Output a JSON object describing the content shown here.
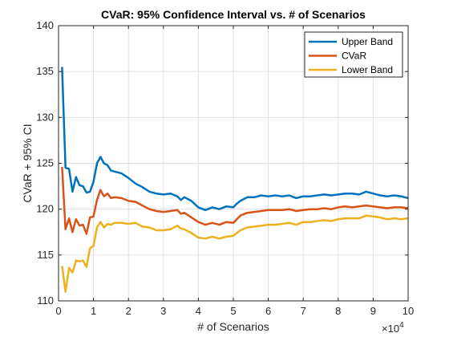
{
  "chart_data": {
    "type": "line",
    "title": "CVaR: 95% Confidence Interval vs. # of Scenarios",
    "xlabel": "# of Scenarios",
    "ylabel": "CVaR + 95% CI",
    "x_exponent_base": "×10",
    "x_exponent_power": "4",
    "xlim": [
      0,
      10
    ],
    "ylim": [
      110,
      140
    ],
    "xticks": [
      0,
      1,
      2,
      3,
      4,
      5,
      6,
      7,
      8,
      9,
      10
    ],
    "yticks": [
      110,
      115,
      120,
      125,
      130,
      135,
      140
    ],
    "grid": true,
    "legend_position": "top-right",
    "series": [
      {
        "name": "Upper Band",
        "color": "#0072BD",
        "points": [
          [
            0.1,
            135.5
          ],
          [
            0.2,
            124.5
          ],
          [
            0.3,
            124.4
          ],
          [
            0.4,
            121.9
          ],
          [
            0.5,
            123.5
          ],
          [
            0.6,
            122.6
          ],
          [
            0.7,
            122.5
          ],
          [
            0.8,
            121.8
          ],
          [
            0.9,
            121.9
          ],
          [
            1.0,
            123.0
          ],
          [
            1.1,
            125.0
          ],
          [
            1.2,
            125.7
          ],
          [
            1.3,
            125.0
          ],
          [
            1.4,
            124.8
          ],
          [
            1.5,
            124.2
          ],
          [
            1.6,
            124.1
          ],
          [
            1.8,
            123.9
          ],
          [
            2.0,
            123.4
          ],
          [
            2.2,
            122.8
          ],
          [
            2.4,
            122.4
          ],
          [
            2.6,
            121.9
          ],
          [
            2.8,
            121.7
          ],
          [
            3.0,
            121.6
          ],
          [
            3.2,
            121.7
          ],
          [
            3.4,
            121.4
          ],
          [
            3.5,
            121.0
          ],
          [
            3.6,
            121.3
          ],
          [
            3.8,
            120.9
          ],
          [
            4.0,
            120.2
          ],
          [
            4.2,
            119.9
          ],
          [
            4.4,
            120.2
          ],
          [
            4.6,
            120.0
          ],
          [
            4.8,
            120.3
          ],
          [
            5.0,
            120.2
          ],
          [
            5.1,
            120.6
          ],
          [
            5.2,
            120.9
          ],
          [
            5.4,
            121.3
          ],
          [
            5.6,
            121.3
          ],
          [
            5.8,
            121.5
          ],
          [
            6.0,
            121.4
          ],
          [
            6.2,
            121.5
          ],
          [
            6.4,
            121.4
          ],
          [
            6.6,
            121.5
          ],
          [
            6.8,
            121.2
          ],
          [
            7.0,
            121.4
          ],
          [
            7.2,
            121.4
          ],
          [
            7.4,
            121.5
          ],
          [
            7.6,
            121.6
          ],
          [
            7.8,
            121.5
          ],
          [
            8.0,
            121.6
          ],
          [
            8.2,
            121.7
          ],
          [
            8.4,
            121.7
          ],
          [
            8.6,
            121.6
          ],
          [
            8.8,
            121.9
          ],
          [
            9.0,
            121.7
          ],
          [
            9.2,
            121.5
          ],
          [
            9.4,
            121.4
          ],
          [
            9.6,
            121.5
          ],
          [
            9.8,
            121.4
          ],
          [
            10.0,
            121.2
          ]
        ]
      },
      {
        "name": "CVaR",
        "color": "#D95319",
        "points": [
          [
            0.1,
            124.6
          ],
          [
            0.2,
            117.8
          ],
          [
            0.3,
            119.0
          ],
          [
            0.4,
            117.5
          ],
          [
            0.5,
            118.9
          ],
          [
            0.6,
            118.2
          ],
          [
            0.7,
            118.3
          ],
          [
            0.8,
            117.3
          ],
          [
            0.9,
            119.1
          ],
          [
            1.0,
            119.2
          ],
          [
            1.1,
            121.0
          ],
          [
            1.2,
            122.1
          ],
          [
            1.3,
            121.4
          ],
          [
            1.4,
            121.7
          ],
          [
            1.5,
            121.2
          ],
          [
            1.6,
            121.3
          ],
          [
            1.8,
            121.2
          ],
          [
            2.0,
            120.9
          ],
          [
            2.2,
            120.8
          ],
          [
            2.4,
            120.4
          ],
          [
            2.6,
            120.0
          ],
          [
            2.8,
            119.8
          ],
          [
            3.0,
            119.7
          ],
          [
            3.2,
            119.8
          ],
          [
            3.4,
            119.9
          ],
          [
            3.5,
            119.5
          ],
          [
            3.6,
            119.6
          ],
          [
            3.8,
            119.1
          ],
          [
            4.0,
            118.6
          ],
          [
            4.2,
            118.3
          ],
          [
            4.4,
            118.5
          ],
          [
            4.6,
            118.3
          ],
          [
            4.8,
            118.6
          ],
          [
            5.0,
            118.5
          ],
          [
            5.1,
            118.9
          ],
          [
            5.2,
            119.3
          ],
          [
            5.4,
            119.6
          ],
          [
            5.6,
            119.7
          ],
          [
            5.8,
            119.8
          ],
          [
            6.0,
            119.9
          ],
          [
            6.2,
            119.9
          ],
          [
            6.4,
            119.9
          ],
          [
            6.6,
            120.0
          ],
          [
            6.8,
            119.8
          ],
          [
            7.0,
            119.9
          ],
          [
            7.2,
            120.0
          ],
          [
            7.4,
            120.0
          ],
          [
            7.6,
            120.1
          ],
          [
            7.8,
            120.0
          ],
          [
            8.0,
            120.2
          ],
          [
            8.2,
            120.3
          ],
          [
            8.4,
            120.2
          ],
          [
            8.6,
            120.3
          ],
          [
            8.8,
            120.4
          ],
          [
            9.0,
            120.3
          ],
          [
            9.2,
            120.2
          ],
          [
            9.4,
            120.1
          ],
          [
            9.6,
            120.2
          ],
          [
            9.8,
            120.2
          ],
          [
            10.0,
            120.1
          ]
        ]
      },
      {
        "name": "Lower Band",
        "color": "#EDB120",
        "points": [
          [
            0.1,
            113.8
          ],
          [
            0.2,
            111.0
          ],
          [
            0.3,
            113.6
          ],
          [
            0.4,
            113.1
          ],
          [
            0.5,
            114.4
          ],
          [
            0.6,
            114.3
          ],
          [
            0.7,
            114.4
          ],
          [
            0.8,
            113.7
          ],
          [
            0.9,
            115.7
          ],
          [
            1.0,
            116.0
          ],
          [
            1.1,
            118.0
          ],
          [
            1.2,
            118.6
          ],
          [
            1.3,
            118.0
          ],
          [
            1.4,
            118.4
          ],
          [
            1.5,
            118.3
          ],
          [
            1.6,
            118.5
          ],
          [
            1.8,
            118.5
          ],
          [
            2.0,
            118.4
          ],
          [
            2.2,
            118.5
          ],
          [
            2.4,
            118.1
          ],
          [
            2.6,
            118.0
          ],
          [
            2.8,
            117.7
          ],
          [
            3.0,
            117.7
          ],
          [
            3.2,
            117.8
          ],
          [
            3.4,
            118.2
          ],
          [
            3.5,
            117.9
          ],
          [
            3.6,
            117.8
          ],
          [
            3.8,
            117.4
          ],
          [
            4.0,
            116.9
          ],
          [
            4.2,
            116.8
          ],
          [
            4.4,
            117.0
          ],
          [
            4.6,
            116.8
          ],
          [
            4.8,
            117.0
          ],
          [
            5.0,
            117.1
          ],
          [
            5.1,
            117.4
          ],
          [
            5.2,
            117.7
          ],
          [
            5.4,
            118.0
          ],
          [
            5.6,
            118.1
          ],
          [
            5.8,
            118.2
          ],
          [
            6.0,
            118.3
          ],
          [
            6.2,
            118.3
          ],
          [
            6.4,
            118.4
          ],
          [
            6.6,
            118.5
          ],
          [
            6.8,
            118.3
          ],
          [
            7.0,
            118.6
          ],
          [
            7.2,
            118.6
          ],
          [
            7.4,
            118.7
          ],
          [
            7.6,
            118.8
          ],
          [
            7.8,
            118.7
          ],
          [
            8.0,
            118.9
          ],
          [
            8.2,
            119.0
          ],
          [
            8.4,
            119.0
          ],
          [
            8.6,
            119.0
          ],
          [
            8.8,
            119.3
          ],
          [
            9.0,
            119.2
          ],
          [
            9.2,
            119.1
          ],
          [
            9.4,
            118.9
          ],
          [
            9.6,
            119.0
          ],
          [
            9.8,
            118.9
          ],
          [
            10.0,
            119.0
          ]
        ]
      }
    ]
  }
}
